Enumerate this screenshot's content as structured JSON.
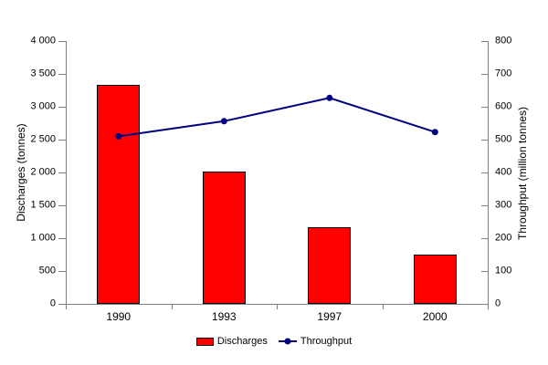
{
  "chart_data": {
    "type": "bar+line combo",
    "title": "",
    "categories": [
      "1990",
      "1993",
      "1997",
      "2000"
    ],
    "series": [
      {
        "name": "Discharges",
        "type": "bar",
        "axis": "left",
        "values": [
          3340,
          2010,
          1165,
          745
        ],
        "color": "#ff0000"
      },
      {
        "name": "Throughput",
        "type": "line",
        "axis": "right",
        "values": [
          510,
          556,
          627,
          523
        ],
        "color": "#000080",
        "marker": "circle"
      }
    ],
    "left_axis": {
      "label": "Discharges (tonnes)",
      "min": 0,
      "max": 4000,
      "step": 500,
      "tick_labels": [
        "0",
        "500",
        "1 000",
        "1 500",
        "2 000",
        "2 500",
        "3 000",
        "3 500",
        "4 000"
      ]
    },
    "right_axis": {
      "label": "Throughput (million tonnes)",
      "min": 0,
      "max": 800,
      "step": 100,
      "tick_labels": [
        "0",
        "100",
        "200",
        "300",
        "400",
        "500",
        "600",
        "700",
        "800"
      ]
    },
    "legend": {
      "position": "bottom",
      "entries": [
        "Discharges",
        "Throughput"
      ]
    },
    "grid": false
  },
  "colors": {
    "background": "#ffffff",
    "axis": "#808080",
    "text": "#000000",
    "bar_fill": "#ff0000",
    "bar_border": "#000000",
    "line": "#000080"
  }
}
